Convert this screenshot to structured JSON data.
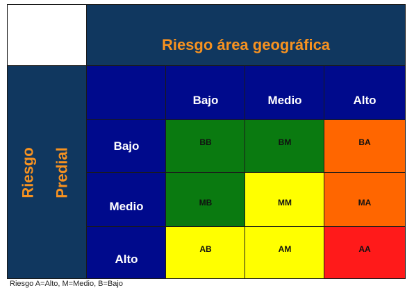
{
  "header": {
    "title": "Riesgo área geográfica"
  },
  "side": {
    "line1": "Riesgo",
    "line2": "Predial"
  },
  "columns": [
    "Bajo",
    "Medio",
    "Alto"
  ],
  "rows": [
    "Bajo",
    "Medio",
    "Alto"
  ],
  "cells": {
    "BB": "BB",
    "BM": "BM",
    "BA": "BA",
    "MB": "MB",
    "MM": "MM",
    "MA": "MA",
    "AB": "AB",
    "AM": "AM",
    "AA": "AA"
  },
  "colors": {
    "green": "#0a7a10",
    "yellow": "#ffff00",
    "orange": "#ff6600",
    "red": "#ff1a1a",
    "navy": "#10375f",
    "blue": "#000a8c"
  },
  "legend": "Riesgo A=Alto, M=Medio, B=Bajo"
}
